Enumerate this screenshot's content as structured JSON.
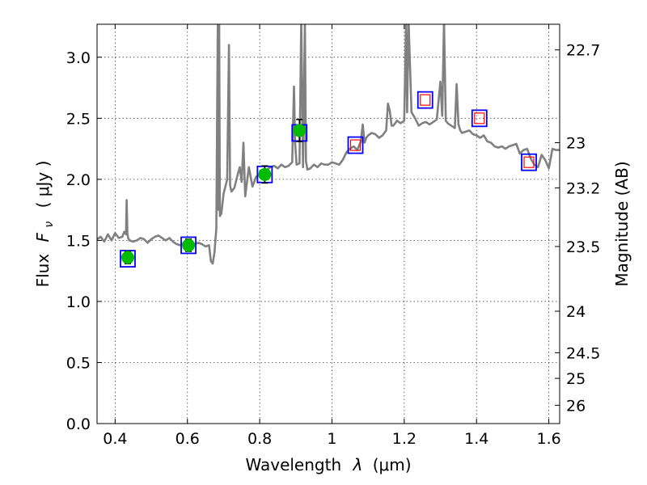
{
  "chart_data": {
    "type": "scatter",
    "xlabel": "Wavelength",
    "xlabel_symbol": "λ",
    "xlabel_unit": "(μm)",
    "ylabel": "Flux",
    "ylabel_symbol": "F",
    "ylabel_symbol_sub": "ν",
    "ylabel_unit": "( μJy )",
    "y2label": "Magnitude (AB)",
    "xlim": [
      0.35,
      1.63
    ],
    "ylim": [
      0.0,
      3.27
    ],
    "grid": true,
    "xticks": [
      0.4,
      0.6,
      0.8,
      1.0,
      1.2,
      1.4,
      1.6
    ],
    "xtick_labels": [
      "0.4",
      "0.6",
      "0.8",
      "1",
      "1.2",
      "1.4",
      "1.6"
    ],
    "yticks": [
      0.0,
      0.5,
      1.0,
      1.5,
      2.0,
      2.5,
      3.0
    ],
    "ytick_labels": [
      "0.0",
      "0.5",
      "1.0",
      "1.5",
      "2.0",
      "2.5",
      "3.0"
    ],
    "y2ticks": [
      {
        "label": "22.7",
        "flux": 3.06
      },
      {
        "label": "23",
        "flux": 2.3
      },
      {
        "label": "23.2",
        "flux": 1.93
      },
      {
        "label": "23.5",
        "flux": 1.45
      },
      {
        "label": "24",
        "flux": 0.92
      },
      {
        "label": "24.5",
        "flux": 0.58
      },
      {
        "label": "25",
        "flux": 0.37
      },
      {
        "label": "26",
        "flux": 0.15
      }
    ],
    "colors": {
      "model": "#808080",
      "model_box": "#0000ff",
      "observed_fill": "#00bb00",
      "upper_limit": "#ff0000",
      "errorbar": "#000000"
    },
    "series": [
      {
        "name": "model spectrum",
        "style": "line",
        "x": [
          0.35,
          0.36,
          0.37,
          0.38,
          0.39,
          0.4,
          0.41,
          0.42,
          0.425,
          0.43,
          0.432,
          0.434,
          0.436,
          0.44,
          0.45,
          0.46,
          0.47,
          0.48,
          0.49,
          0.5,
          0.51,
          0.52,
          0.53,
          0.54,
          0.55,
          0.56,
          0.57,
          0.58,
          0.59,
          0.6,
          0.61,
          0.62,
          0.63,
          0.64,
          0.65,
          0.66,
          0.665,
          0.67,
          0.675,
          0.68,
          0.684,
          0.686,
          0.688,
          0.69,
          0.694,
          0.7,
          0.71,
          0.715,
          0.718,
          0.722,
          0.73,
          0.74,
          0.745,
          0.75,
          0.755,
          0.76,
          0.77,
          0.78,
          0.79,
          0.8,
          0.81,
          0.82,
          0.83,
          0.84,
          0.85,
          0.86,
          0.87,
          0.88,
          0.89,
          0.895,
          0.898,
          0.902,
          0.91,
          0.915,
          0.92,
          0.925,
          0.928,
          0.932,
          0.94,
          0.95,
          0.96,
          0.97,
          0.98,
          0.99,
          1.0,
          1.01,
          1.02,
          1.03,
          1.04,
          1.05,
          1.06,
          1.07,
          1.08,
          1.085,
          1.09,
          1.095,
          1.1,
          1.11,
          1.12,
          1.13,
          1.14,
          1.15,
          1.155,
          1.16,
          1.165,
          1.17,
          1.18,
          1.19,
          1.2,
          1.205,
          1.208,
          1.212,
          1.22,
          1.23,
          1.24,
          1.25,
          1.26,
          1.27,
          1.28,
          1.29,
          1.3,
          1.305,
          1.31,
          1.315,
          1.32,
          1.33,
          1.34,
          1.345,
          1.35,
          1.355,
          1.36,
          1.37,
          1.38,
          1.39,
          1.4,
          1.41,
          1.42,
          1.43,
          1.44,
          1.45,
          1.46,
          1.47,
          1.48,
          1.49,
          1.5,
          1.51,
          1.52,
          1.53,
          1.54,
          1.55,
          1.56,
          1.57,
          1.58,
          1.59,
          1.6,
          1.61,
          1.62,
          1.63
        ],
        "y": [
          1.51,
          1.53,
          1.49,
          1.55,
          1.5,
          1.56,
          1.52,
          1.53,
          1.57,
          1.55,
          1.83,
          1.56,
          1.52,
          1.5,
          1.49,
          1.5,
          1.52,
          1.51,
          1.48,
          1.51,
          1.53,
          1.54,
          1.52,
          1.5,
          1.52,
          1.49,
          1.47,
          1.46,
          1.48,
          1.5,
          1.49,
          1.47,
          1.48,
          1.47,
          1.45,
          1.46,
          1.33,
          1.31,
          1.4,
          1.6,
          3.3,
          1.75,
          3.3,
          1.7,
          1.72,
          1.88,
          2.0,
          3.1,
          1.95,
          1.9,
          1.93,
          2.05,
          2.1,
          1.98,
          2.3,
          1.86,
          2.1,
          1.94,
          2.02,
          2.04,
          2.06,
          2.08,
          2.1,
          2.11,
          2.09,
          2.12,
          2.1,
          2.11,
          2.14,
          2.76,
          2.3,
          2.12,
          2.13,
          3.3,
          2.1,
          3.3,
          2.15,
          2.08,
          2.09,
          2.12,
          2.1,
          2.13,
          2.12,
          2.12,
          2.14,
          2.13,
          2.12,
          2.16,
          2.22,
          2.25,
          2.27,
          2.24,
          2.31,
          2.45,
          2.3,
          2.34,
          2.36,
          2.38,
          2.37,
          2.34,
          2.36,
          2.4,
          2.62,
          2.56,
          2.44,
          2.44,
          2.48,
          2.46,
          2.48,
          3.3,
          2.55,
          3.3,
          2.55,
          2.5,
          2.44,
          2.46,
          2.47,
          2.45,
          2.47,
          2.49,
          2.8,
          2.52,
          3.3,
          2.48,
          2.46,
          2.44,
          2.42,
          2.78,
          2.45,
          2.4,
          2.38,
          2.39,
          2.4,
          2.37,
          2.36,
          2.34,
          2.36,
          2.31,
          2.3,
          2.27,
          2.26,
          2.27,
          2.25,
          2.27,
          2.28,
          2.29,
          2.21,
          2.24,
          2.25,
          2.17,
          2.12,
          2.1,
          2.2,
          2.16,
          2.09,
          2.25,
          2.24,
          2.24
        ]
      },
      {
        "name": "model photometry",
        "style": "box",
        "x": [
          0.435,
          0.603,
          0.814,
          0.91,
          1.065,
          1.258,
          1.408,
          1.545
        ],
        "y": [
          1.35,
          1.46,
          2.04,
          2.38,
          2.28,
          2.65,
          2.5,
          2.14
        ]
      },
      {
        "name": "observed photometry",
        "style": "circle-errorbar",
        "x": [
          0.435,
          0.603,
          0.814,
          0.91
        ],
        "y": [
          1.36,
          1.46,
          2.04,
          2.4
        ],
        "yerr": [
          0.05,
          0.05,
          0.07,
          0.09
        ]
      },
      {
        "name": "upper limits",
        "style": "open-square",
        "x": [
          1.065,
          1.258,
          1.408,
          1.545
        ],
        "y": [
          2.28,
          2.65,
          2.5,
          2.14
        ]
      }
    ]
  }
}
